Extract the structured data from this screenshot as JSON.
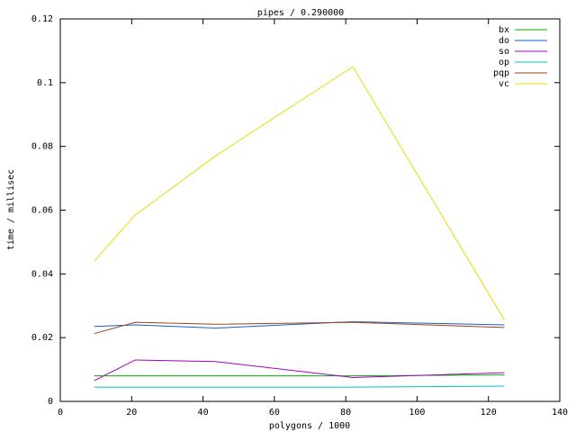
{
  "chart_data": {
    "type": "line",
    "title": "pipes / 0.290000",
    "x_label": "polygons / 1000",
    "y_label": "time / millisec",
    "x": [
      9.5,
      21,
      43.5,
      82,
      124.5
    ],
    "series": [
      {
        "name": "bx",
        "color": "#00b000",
        "values": [
          0.008,
          0.008,
          0.008,
          0.008,
          0.0083
        ]
      },
      {
        "name": "do",
        "color": "#1060d0",
        "values": [
          0.0235,
          0.024,
          0.023,
          0.025,
          0.024
        ]
      },
      {
        "name": "so",
        "color": "#a000c0",
        "values": [
          0.0065,
          0.013,
          0.0125,
          0.0075,
          0.009
        ]
      },
      {
        "name": "op",
        "color": "#00c0c0",
        "values": [
          0.0045,
          0.0045,
          0.0045,
          0.0045,
          0.0048
        ]
      },
      {
        "name": "pqp",
        "color": "#a04010",
        "values": [
          0.0213,
          0.0248,
          0.0242,
          0.0248,
          0.0232
        ]
      },
      {
        "name": "vc",
        "color": "#e0e000",
        "values": [
          0.044,
          0.0585,
          0.077,
          0.105,
          0.0255
        ]
      }
    ],
    "xlim": [
      0,
      140
    ],
    "xticks": [
      0,
      20,
      40,
      60,
      80,
      100,
      120,
      140
    ],
    "ylim": [
      0,
      0.12
    ],
    "yticks": [
      0,
      0.02,
      0.04,
      0.06,
      0.08,
      0.1,
      0.12
    ],
    "legend": "top-right"
  }
}
